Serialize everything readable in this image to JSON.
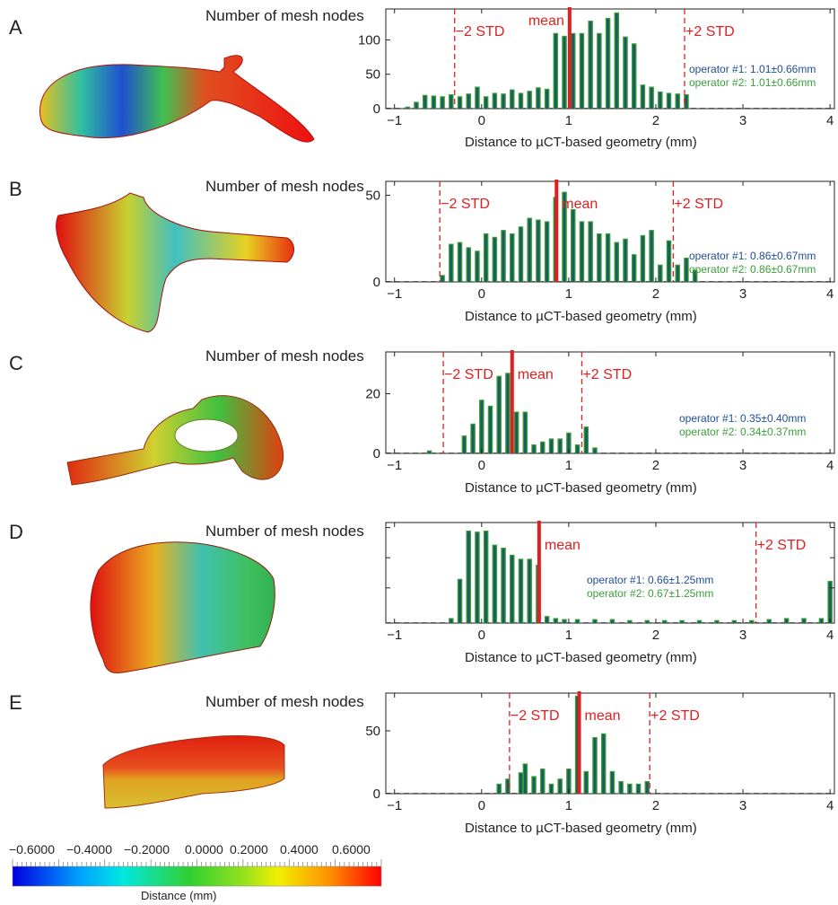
{
  "panels": [
    {
      "letter": "A",
      "ylabel": "Number of mesh nodes",
      "xlabel": "Distance to µCT-based geometry (mm)"
    },
    {
      "letter": "B",
      "ylabel": "Number of mesh nodes",
      "xlabel": "Distance to µCT-based geometry (mm)"
    },
    {
      "letter": "C",
      "ylabel": "Number of mesh nodes",
      "xlabel": "Distance to µCT-based geometry (mm)"
    },
    {
      "letter": "D",
      "ylabel": "Number of mesh nodes",
      "xlabel": "Distance to µCT-based geometry (mm)"
    },
    {
      "letter": "E",
      "ylabel": "Number of mesh nodes",
      "xlabel": "Distance to µCT-based geometry (mm)"
    }
  ],
  "colors": {
    "op1": "#1f4e9a",
    "op2": "#3a9e3a",
    "bar_fill": "#1b5c5c",
    "mean": "#e02020",
    "std": "#e02020"
  },
  "chart_data": [
    {
      "type": "bar",
      "panel": "A",
      "xlim": [
        -1.1,
        4.05
      ],
      "ylim": [
        0,
        145
      ],
      "xticks": [
        -1,
        0,
        1,
        2,
        3,
        4
      ],
      "yticks": [
        0,
        50,
        100
      ],
      "x": [
        -0.85,
        -0.75,
        -0.65,
        -0.55,
        -0.45,
        -0.35,
        -0.25,
        -0.15,
        -0.05,
        0.05,
        0.15,
        0.25,
        0.35,
        0.45,
        0.55,
        0.65,
        0.75,
        0.85,
        0.95,
        1.05,
        1.15,
        1.25,
        1.35,
        1.45,
        1.55,
        1.65,
        1.75,
        1.85,
        1.95,
        2.05,
        2.15,
        2.25,
        2.35
      ],
      "values": [
        3,
        10,
        20,
        19,
        18,
        21,
        18,
        22,
        32,
        18,
        23,
        22,
        28,
        23,
        26,
        31,
        29,
        110,
        106,
        110,
        110,
        128,
        110,
        132,
        140,
        105,
        95,
        35,
        32,
        25,
        23,
        22,
        21
      ],
      "mean": 1.01,
      "minus2std": -0.31,
      "plus2std": 2.33,
      "mean_label": "mean",
      "minus_label": "−2 STD",
      "plus_label": "+2 STD",
      "op1": "operator #1: 1.01±0.66mm",
      "op2": "operator #2: 1.01±0.66mm"
    },
    {
      "type": "bar",
      "panel": "B",
      "xlim": [
        -1.1,
        4.05
      ],
      "ylim": [
        0,
        58
      ],
      "xticks": [
        -1,
        0,
        1,
        2,
        3,
        4
      ],
      "yticks": [
        0,
        50
      ],
      "x": [
        -0.45,
        -0.35,
        -0.25,
        -0.15,
        -0.05,
        0.05,
        0.15,
        0.25,
        0.35,
        0.45,
        0.55,
        0.65,
        0.75,
        0.85,
        0.95,
        1.05,
        1.15,
        1.25,
        1.35,
        1.45,
        1.55,
        1.65,
        1.75,
        1.85,
        1.95,
        2.05,
        2.15,
        2.25,
        2.35,
        2.45
      ],
      "values": [
        4,
        22,
        23,
        20,
        18,
        28,
        26,
        30,
        28,
        32,
        37,
        36,
        35,
        49,
        52,
        42,
        35,
        35,
        28,
        28,
        23,
        25,
        16,
        27,
        30,
        10,
        24,
        10,
        14,
        7
      ],
      "mean": 0.86,
      "minus2std": -0.48,
      "plus2std": 2.2,
      "mean_label": "mean",
      "minus_label": "−2 STD",
      "plus_label": "+2 STD",
      "op1": "operator #1: 0.86±0.67mm",
      "op2": "operator #2: 0.86±0.67mm"
    },
    {
      "type": "bar",
      "panel": "C",
      "xlim": [
        -1.1,
        4.05
      ],
      "ylim": [
        0,
        34
      ],
      "xticks": [
        -1,
        0,
        1,
        2,
        3,
        4
      ],
      "yticks": [
        0,
        20
      ],
      "x": [
        -0.6,
        -0.2,
        -0.1,
        0.0,
        0.1,
        0.2,
        0.3,
        0.4,
        0.5,
        0.6,
        0.7,
        0.8,
        0.9,
        1.0,
        1.1,
        1.2,
        1.3
      ],
      "values": [
        1,
        6,
        10,
        18,
        16,
        26,
        27,
        14,
        14,
        3,
        4,
        5,
        5,
        7,
        3,
        9,
        2
      ],
      "mean": 0.35,
      "minus2std": -0.44,
      "plus2std": 1.15,
      "mean_label": "mean",
      "minus_label": "−2 STD",
      "plus_label": "+2 STD",
      "op1": "operator #1: 0.35±0.40mm",
      "op2": "operator #2: 0.34±0.37mm"
    },
    {
      "type": "bar",
      "panel": "D",
      "xlim": [
        -1.1,
        4.05
      ],
      "ylim": [
        0,
        100
      ],
      "xticks": [
        -1,
        0,
        1,
        2,
        3,
        4
      ],
      "yticks": [],
      "x": [
        -0.35,
        -0.25,
        -0.15,
        -0.05,
        0.05,
        0.15,
        0.25,
        0.35,
        0.45,
        0.55,
        0.65,
        0.75,
        0.85,
        0.95,
        1.1,
        1.3,
        1.5,
        1.7,
        1.9,
        2.1,
        2.3,
        2.5,
        2.7,
        2.9,
        3.1,
        3.3,
        3.5,
        3.7,
        3.9,
        4.0
      ],
      "values": [
        5,
        44,
        92,
        91,
        92,
        78,
        75,
        68,
        64,
        64,
        58,
        7,
        5,
        4,
        4,
        4,
        4,
        3,
        3,
        3,
        3,
        3,
        3,
        3,
        3,
        4,
        5,
        5,
        5,
        42
      ],
      "mean": 0.66,
      "minus2std": null,
      "plus2std": 3.15,
      "mean_label": "mean",
      "minus_label": "",
      "plus_label": "+2 STD",
      "op1": "operator #1: 0.66±1.25mm",
      "op2": "operator #2: 0.67±1.25mm"
    },
    {
      "type": "bar",
      "panel": "E",
      "xlim": [
        -1.1,
        4.05
      ],
      "ylim": [
        0,
        80
      ],
      "xticks": [
        -1,
        0,
        1,
        2,
        3,
        4
      ],
      "yticks": [
        0,
        50
      ],
      "x": [
        0.2,
        0.3,
        0.45,
        0.5,
        0.6,
        0.7,
        0.8,
        0.9,
        1.0,
        1.1,
        1.2,
        1.3,
        1.4,
        1.5,
        1.6,
        1.7,
        1.8,
        1.9
      ],
      "values": [
        8,
        12,
        17,
        24,
        14,
        20,
        8,
        12,
        20,
        78,
        18,
        45,
        48,
        18,
        10,
        8,
        8,
        10
      ],
      "mean": 1.12,
      "minus2std": 0.32,
      "plus2std": 1.93,
      "mean_label": "mean",
      "minus_label": "−2 STD",
      "plus_label": "+2 STD",
      "op1": "",
      "op2": ""
    }
  ],
  "colorbar": {
    "ticks": [
      "−0.6000",
      "−0.4000",
      "−0.2000",
      "0.0000",
      "0.2000",
      "0.4000",
      "0.6000"
    ],
    "title": "Distance (mm)"
  }
}
